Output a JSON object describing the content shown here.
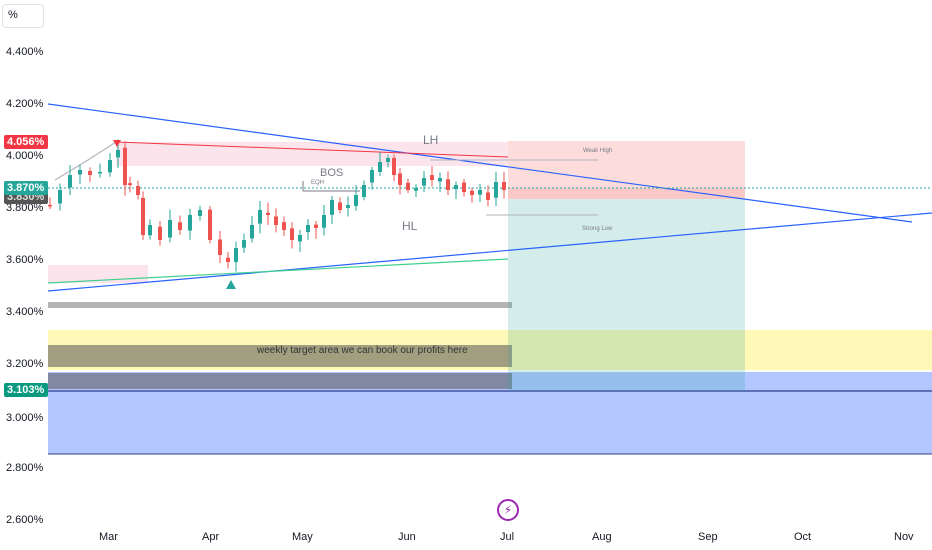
{
  "toolbar": {
    "unit_label": "%"
  },
  "y_axis": {
    "ticks": [
      "4.400%",
      "4.200%",
      "4.000%",
      "3.800%",
      "3.600%",
      "3.400%",
      "3.200%",
      "3.000%",
      "2.800%",
      "2.600%"
    ]
  },
  "x_axis": {
    "ticks": [
      "Mar",
      "Apr",
      "May",
      "Jun",
      "Jul",
      "Aug",
      "Sep",
      "Oct",
      "Nov"
    ]
  },
  "price_tags": {
    "high": "4.056%",
    "current": "3.870%",
    "secondary": "3.830%",
    "target": "3.103%"
  },
  "annotations": {
    "lh": "LH",
    "hl": "HL",
    "bos": "BOS",
    "eqh": "EQH",
    "weak_high": "Weak High",
    "strong_low": "Strong Low",
    "target_text": "weekly target area we can book our profits here"
  },
  "colors": {
    "bull": "#26a69a",
    "bear": "#ef5350",
    "trendline": "#2962ff",
    "support": "#3ecf8e",
    "resistance": "#f23645"
  },
  "icons": {
    "bolt": "lightning-bolt-icon"
  },
  "chart_data": {
    "type": "candlestick",
    "y_unit": "%",
    "ylim": [
      2.6,
      4.5
    ],
    "x": [
      "Mar",
      "Apr",
      "May",
      "Jun",
      "Jul",
      "Aug",
      "Sep",
      "Oct",
      "Nov"
    ],
    "levels": {
      "high": 4.056,
      "current": 3.87,
      "secondary": 3.83,
      "target": 3.103
    }
  }
}
